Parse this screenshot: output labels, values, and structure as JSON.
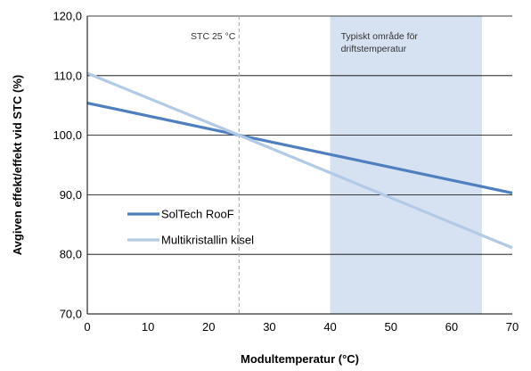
{
  "chart_data": {
    "type": "line",
    "title": "",
    "xlabel": "Modultemperatur (°C)",
    "ylabel": "Avgiven effekt/effekt vid STC (%)",
    "xlim": [
      0,
      70
    ],
    "ylim": [
      70,
      120
    ],
    "x_ticks": [
      0,
      10,
      20,
      30,
      40,
      50,
      60,
      70
    ],
    "x_tick_labels": [
      "0",
      "10",
      "20",
      "30",
      "40",
      "50",
      "60",
      "70"
    ],
    "y_ticks": [
      70,
      80,
      90,
      100,
      110,
      120
    ],
    "y_tick_labels": [
      "70,0",
      "80,0",
      "90,0",
      "100,0",
      "110,0",
      "120,0"
    ],
    "grid": "horizontal",
    "legend_position": "left-middle",
    "series": [
      {
        "name": "SolTech RooF",
        "color": "#4f7fbf",
        "x": [
          0,
          25,
          70
        ],
        "y": [
          105.4,
          100.0,
          90.3
        ]
      },
      {
        "name": "Multikristallin kisel",
        "color": "#b3cae6",
        "x": [
          0,
          25,
          70
        ],
        "y": [
          110.4,
          100.0,
          81.1
        ]
      }
    ],
    "shaded_region": {
      "x": [
        40,
        65
      ],
      "color": "#d6e2f2",
      "label_lines": [
        "Typiskt område för",
        "driftstemperatur"
      ]
    },
    "reference_line": {
      "x": 25,
      "label": "STC 25 °C"
    }
  }
}
